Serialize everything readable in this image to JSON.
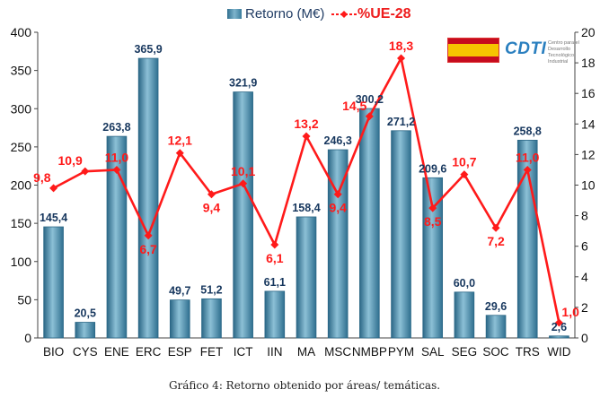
{
  "chart_data": {
    "type": "bar",
    "categories": [
      "BIO",
      "CYS",
      "ENE",
      "ERC",
      "ESP",
      "FET",
      "ICT",
      "IIN",
      "MA",
      "MSC",
      "NMBP",
      "PYM",
      "SAL",
      "SEG",
      "SOC",
      "TRS",
      "WID"
    ],
    "series": [
      {
        "name": "Retorno (M€)",
        "type": "bar",
        "axis": "left",
        "values": [
          145.4,
          20.5,
          263.8,
          365.9,
          49.7,
          51.2,
          321.9,
          61.1,
          158.4,
          246.3,
          300.2,
          271.2,
          209.6,
          60.0,
          29.6,
          258.8,
          2.6
        ],
        "labels": [
          "145,4",
          "20,5",
          "263,8",
          "365,9",
          "49,7",
          "51,2",
          "321,9",
          "61,1",
          "158,4",
          "246,3",
          "300,2",
          "271,2",
          "209,6",
          "60,0",
          "29,6",
          "258,8",
          "2,6"
        ]
      },
      {
        "name": "%UE-28",
        "type": "line",
        "axis": "right",
        "values": [
          9.8,
          10.9,
          11.0,
          6.7,
          12.1,
          9.4,
          10.1,
          6.1,
          13.2,
          9.4,
          14.5,
          18.3,
          8.5,
          10.7,
          7.2,
          11.0,
          1.0
        ],
        "labels": [
          "9,8",
          "10,9",
          "11,0",
          "6,7",
          "12,1",
          "9,4",
          "10,1",
          "6,1",
          "13,2",
          "9,4",
          "14,5",
          "18,3",
          "8,5",
          "10,7",
          "7,2",
          "11,0",
          "1,0"
        ]
      }
    ],
    "ylim": [
      0,
      400
    ],
    "yticks": [
      "0",
      "50",
      "100",
      "150",
      "200",
      "250",
      "300",
      "350",
      "400"
    ],
    "y2lim": [
      0,
      20
    ],
    "y2ticks": [
      "0",
      "2",
      "4",
      "6",
      "8",
      "10",
      "12",
      "14",
      "16",
      "18",
      "20"
    ],
    "legend_position": "top-center",
    "grid": false,
    "colors": {
      "bar": "#4a8fb0",
      "bar_dark": "#2b6786",
      "line": "#ff1a1a",
      "bar_label": "#17375e",
      "line_label": "#ff1a1a"
    }
  },
  "legend": {
    "bar_label": "Retorno (M€)",
    "line_label": "%UE-28"
  },
  "logo": {
    "cdti": "CDTI",
    "cdti_sub": "Centro para el Desarrollo Tecnológico Industrial"
  },
  "caption": "Gráfico 4: Retorno obtenido por áreas/ temáticas."
}
